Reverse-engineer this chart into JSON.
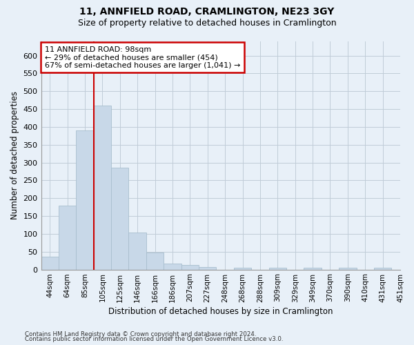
{
  "title": "11, ANNFIELD ROAD, CRAMLINGTON, NE23 3GY",
  "subtitle": "Size of property relative to detached houses in Cramlington",
  "xlabel": "Distribution of detached houses by size in Cramlington",
  "ylabel": "Number of detached properties",
  "footnote1": "Contains HM Land Registry data © Crown copyright and database right 2024.",
  "footnote2": "Contains public sector information licensed under the Open Government Licence v3.0.",
  "bins": [
    "44sqm",
    "64sqm",
    "85sqm",
    "105sqm",
    "125sqm",
    "146sqm",
    "166sqm",
    "186sqm",
    "207sqm",
    "227sqm",
    "248sqm",
    "268sqm",
    "288sqm",
    "309sqm",
    "329sqm",
    "349sqm",
    "370sqm",
    "390sqm",
    "410sqm",
    "431sqm",
    "451sqm"
  ],
  "bar_values": [
    35,
    180,
    390,
    460,
    285,
    103,
    48,
    17,
    12,
    7,
    0,
    5,
    0,
    5,
    0,
    5,
    0,
    5,
    0,
    5
  ],
  "bar_color": "#c8d8e8",
  "bar_edge_color": "#a8bece",
  "grid_color": "#c8d8e8",
  "property_label": "11 ANNFIELD ROAD: 98sqm",
  "annotation_line1": "← 29% of detached houses are smaller (454)",
  "annotation_line2": "67% of semi-detached houses are larger (1,041) →",
  "annotation_box_facecolor": "#ffffff",
  "annotation_box_edgecolor": "#cc0000",
  "property_line_color": "#cc0000",
  "ylim": [
    0,
    640
  ],
  "yticks": [
    0,
    50,
    100,
    150,
    200,
    250,
    300,
    350,
    400,
    450,
    500,
    550,
    600
  ],
  "background_color": "#e8f0f8",
  "plot_background": "#e8f0f8",
  "title_fontsize": 10,
  "subtitle_fontsize": 9
}
